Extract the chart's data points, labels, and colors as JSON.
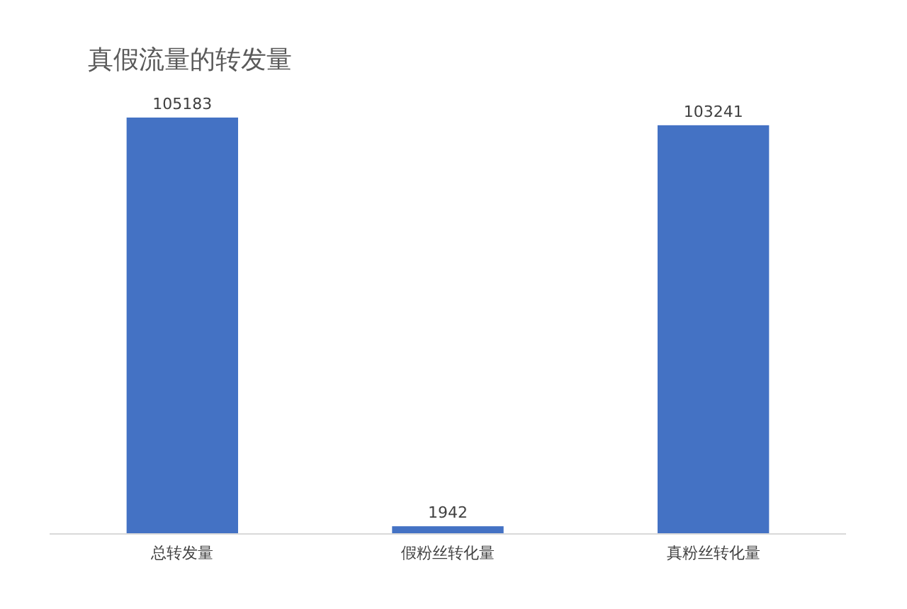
{
  "chart_data": {
    "type": "bar",
    "title": "真假流量的转发量",
    "categories": [
      "总转发量",
      "假粉丝转化量",
      "真粉丝转化量"
    ],
    "values": [
      105183,
      1942,
      103241
    ],
    "color": "#4472c4",
    "data_labels": true
  }
}
